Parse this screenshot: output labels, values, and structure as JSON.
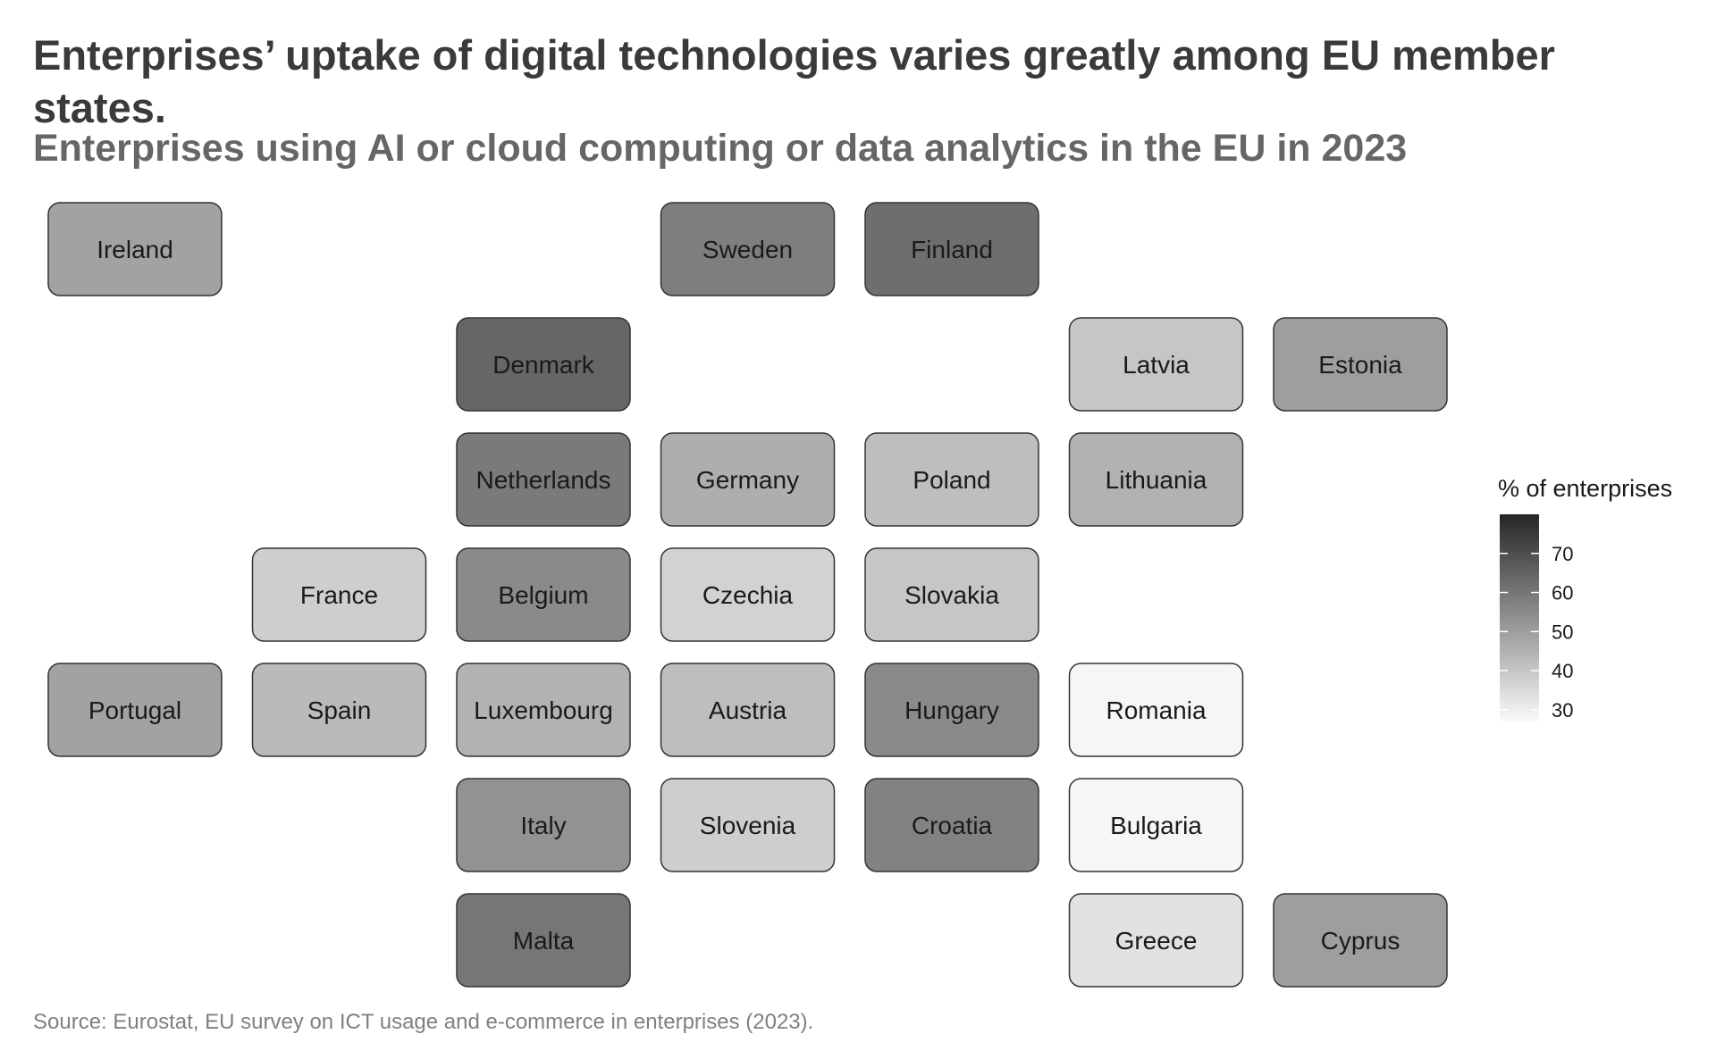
{
  "title": "Enterprises’ uptake of digital technologies varies greatly among EU member states.",
  "subtitle": "Enterprises using AI or cloud computing or data analytics in the EU in 2023",
  "source": "Source: Eurostat, EU survey on ICT usage and e-commerce in enterprises (2023).",
  "chart_data": {
    "type": "heatmap",
    "title": "Enterprises’ uptake of digital technologies varies greatly among EU member states.",
    "subtitle": "Enterprises using AI or cloud computing or data analytics in the EU in 2023",
    "legend": {
      "title": "% of enterprises",
      "position": "right",
      "ticks": [
        30,
        40,
        50,
        60,
        70
      ],
      "range": [
        27,
        80
      ],
      "low_color": "#fafafa",
      "high_color": "#262626"
    },
    "tiles": [
      {
        "country": "Ireland",
        "row": 1,
        "col": 1,
        "value": 49
      },
      {
        "country": "Sweden",
        "row": 1,
        "col": 4,
        "value": 58
      },
      {
        "country": "Finland",
        "row": 1,
        "col": 5,
        "value": 62
      },
      {
        "country": "Denmark",
        "row": 2,
        "col": 3,
        "value": 64
      },
      {
        "country": "Latvia",
        "row": 2,
        "col": 6,
        "value": 40
      },
      {
        "country": "Estonia",
        "row": 2,
        "col": 7,
        "value": 50
      },
      {
        "country": "Netherlands",
        "row": 3,
        "col": 3,
        "value": 59
      },
      {
        "country": "Germany",
        "row": 3,
        "col": 4,
        "value": 46
      },
      {
        "country": "Poland",
        "row": 3,
        "col": 5,
        "value": 42
      },
      {
        "country": "Lithuania",
        "row": 3,
        "col": 6,
        "value": 45
      },
      {
        "country": "France",
        "row": 4,
        "col": 2,
        "value": 38
      },
      {
        "country": "Belgium",
        "row": 4,
        "col": 3,
        "value": 55
      },
      {
        "country": "Czechia",
        "row": 4,
        "col": 4,
        "value": 37
      },
      {
        "country": "Slovakia",
        "row": 4,
        "col": 5,
        "value": 40
      },
      {
        "country": "Portugal",
        "row": 5,
        "col": 1,
        "value": 49
      },
      {
        "country": "Spain",
        "row": 5,
        "col": 2,
        "value": 43
      },
      {
        "country": "Luxembourg",
        "row": 5,
        "col": 3,
        "value": 45
      },
      {
        "country": "Austria",
        "row": 5,
        "col": 4,
        "value": 42
      },
      {
        "country": "Hungary",
        "row": 5,
        "col": 5,
        "value": 55
      },
      {
        "country": "Romania",
        "row": 5,
        "col": 6,
        "value": 28
      },
      {
        "country": "Italy",
        "row": 6,
        "col": 3,
        "value": 53
      },
      {
        "country": "Slovenia",
        "row": 6,
        "col": 4,
        "value": 38
      },
      {
        "country": "Croatia",
        "row": 6,
        "col": 5,
        "value": 57
      },
      {
        "country": "Bulgaria",
        "row": 6,
        "col": 6,
        "value": 28
      },
      {
        "country": "Malta",
        "row": 7,
        "col": 3,
        "value": 60
      },
      {
        "country": "Greece",
        "row": 7,
        "col": 6,
        "value": 33
      },
      {
        "country": "Cyprus",
        "row": 7,
        "col": 7,
        "value": 50
      }
    ]
  }
}
